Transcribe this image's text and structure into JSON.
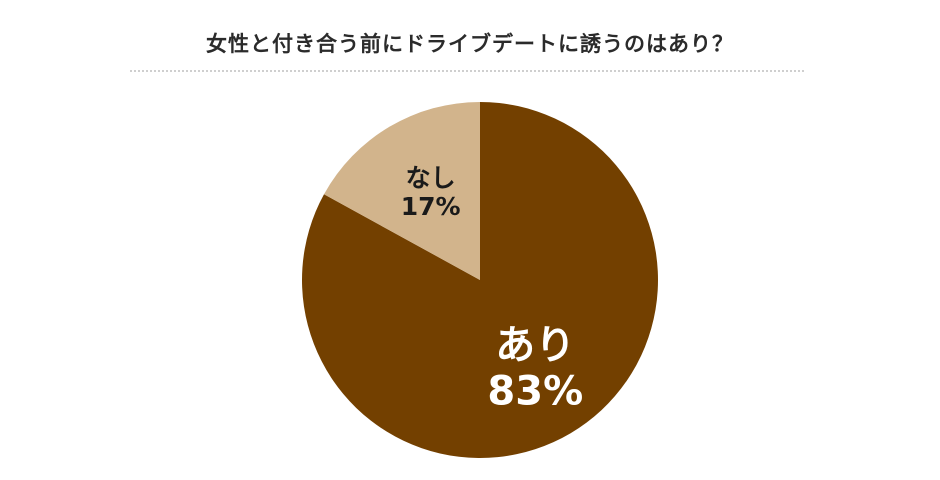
{
  "chart_data": {
    "type": "pie",
    "title": "女性と付き合う前にドライブデートに誘うのはあり？",
    "slices": [
      {
        "label": "あり",
        "value": 83,
        "value_label": "83%",
        "color": "#734000",
        "label_color": "#ffffff"
      },
      {
        "label": "なし",
        "value": 17,
        "value_label": "17%",
        "color": "#d2b48c",
        "label_color": "#1a1a1a"
      }
    ]
  }
}
